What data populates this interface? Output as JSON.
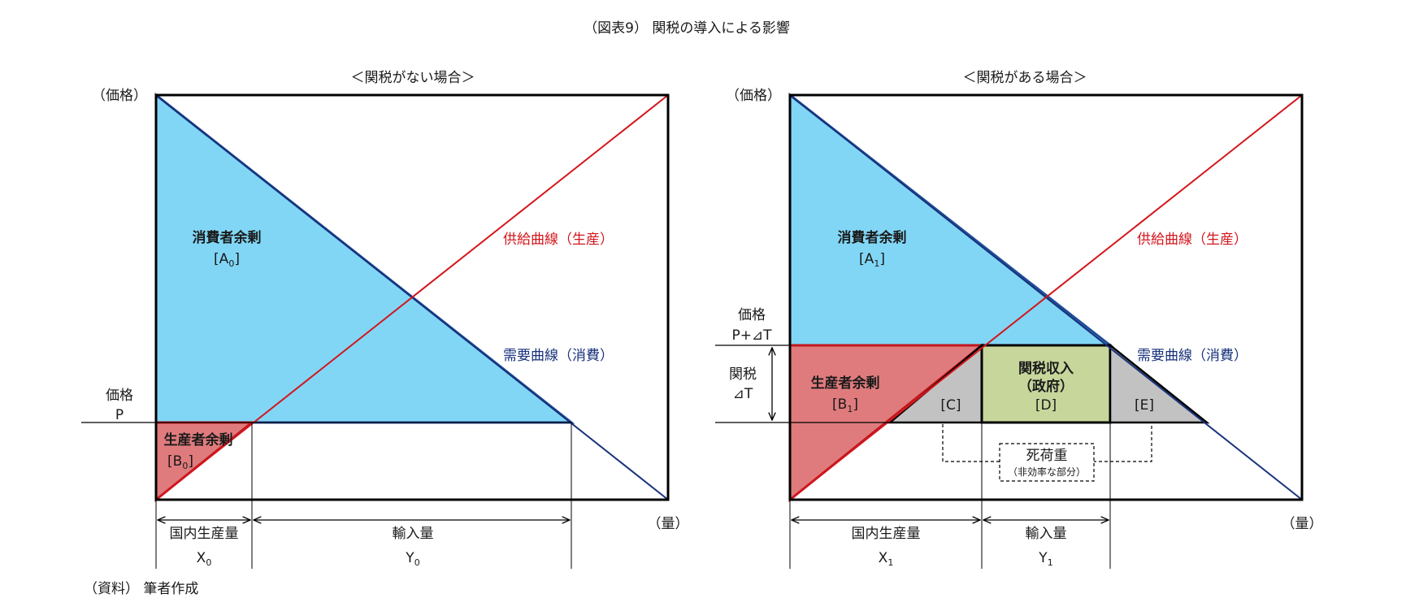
{
  "figure_title": "（図表9） 関税の導入による影響",
  "source_note": "（資料） 筆者作成",
  "colors": {
    "supply_line": "#d3161d",
    "demand_line": "#17327a",
    "consumer_fill": "#81d6f5",
    "producer_fill": "#e07b7d",
    "revenue_fill": "#c7d79c",
    "deadweight_fill": "#c2c2c2",
    "label_red": "#d3161d",
    "label_navy": "#17327a"
  },
  "left_panel": {
    "heading": "＜関税がない場合＞",
    "y_axis_label": "（価格）",
    "x_axis_label": "（量）",
    "price_label": "価格",
    "price_symbol": "P",
    "consumer_surplus": {
      "label": "消費者余剰",
      "bracket_open": "[A",
      "subscript": "0",
      "bracket_close": "]"
    },
    "producer_surplus": {
      "label": "生産者余剰",
      "bracket_open": "[B",
      "subscript": "0",
      "bracket_close": "]"
    },
    "supply_curve_label": "供給曲線（生産）",
    "demand_curve_label": "需要曲線（消費）",
    "domestic_production_label": "国内生産量",
    "domestic_production_symbol": "X",
    "domestic_production_subscript": "0",
    "imports_label": "輸入量",
    "imports_symbol": "Y",
    "imports_subscript": "0"
  },
  "right_panel": {
    "heading": "＜関税がある場合＞",
    "y_axis_label": "（価格）",
    "x_axis_label": "（量）",
    "price_label": "価格",
    "price_with_tariff": "P+⊿T",
    "tariff_label": "関税",
    "tariff_symbol": "⊿T",
    "consumer_surplus": {
      "label": "消費者余剰",
      "bracket_open": "[A",
      "subscript": "1",
      "bracket_close": "]"
    },
    "producer_surplus": {
      "label": "生産者余剰",
      "bracket_open": "[B",
      "subscript": "1",
      "bracket_close": "]"
    },
    "tariff_revenue": {
      "label": "関税収入",
      "sublabel": "（政府）",
      "code": "[D]"
    },
    "area_c": "[C]",
    "area_e": "[E]",
    "deadweight_loss": {
      "label": "死荷重",
      "sublabel": "（非効率な部分）"
    },
    "supply_curve_label": "供給曲線（生産）",
    "demand_curve_label": "需要曲線（消費）",
    "domestic_production_label": "国内生産量",
    "domestic_production_symbol": "X",
    "domestic_production_subscript": "1",
    "imports_label": "輸入量",
    "imports_symbol": "Y",
    "imports_subscript": "1"
  }
}
